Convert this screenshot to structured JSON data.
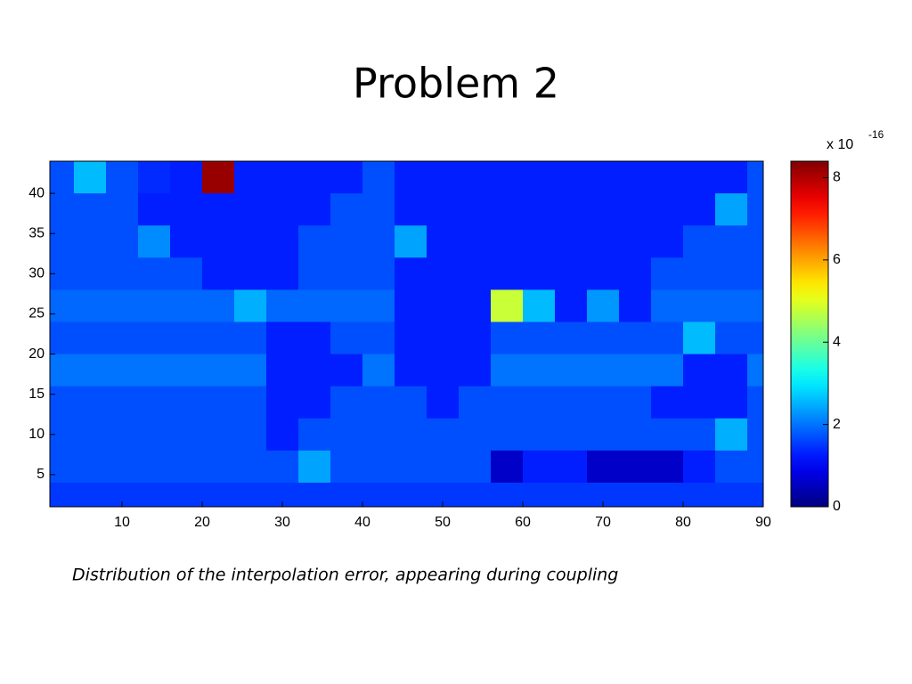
{
  "title": "Problem 2",
  "caption": "Distribution of the interpolation error, appearing during coupling",
  "chart_data": {
    "type": "heatmap",
    "x": [
      2,
      6,
      10,
      14,
      18,
      22,
      26,
      30,
      34,
      38,
      42,
      46,
      50,
      54,
      58,
      62,
      66,
      70,
      74,
      78,
      82,
      86,
      90
    ],
    "y": [
      42,
      38,
      34,
      30,
      26,
      22,
      18,
      14,
      10,
      6,
      2
    ],
    "z": [
      [
        1.7,
        2.6,
        1.7,
        1.4,
        1.3,
        8.2,
        1.3,
        1.3,
        1.3,
        1.3,
        1.7,
        1.3,
        1.3,
        1.3,
        1.3,
        1.3,
        1.3,
        1.3,
        1.3,
        1.3,
        1.3,
        1.3,
        1.7
      ],
      [
        1.7,
        1.7,
        1.7,
        1.3,
        1.3,
        1.3,
        1.3,
        1.3,
        1.3,
        1.7,
        1.7,
        1.3,
        1.3,
        1.3,
        1.3,
        1.3,
        1.3,
        1.3,
        1.3,
        1.3,
        1.3,
        2.4,
        1.7
      ],
      [
        1.7,
        1.7,
        1.7,
        2.2,
        1.3,
        1.3,
        1.3,
        1.3,
        1.7,
        1.7,
        1.7,
        2.4,
        1.3,
        1.3,
        1.3,
        1.3,
        1.3,
        1.3,
        1.3,
        1.3,
        1.7,
        1.7,
        1.7
      ],
      [
        1.7,
        1.7,
        1.7,
        1.7,
        1.7,
        1.3,
        1.3,
        1.3,
        1.7,
        1.7,
        1.7,
        1.3,
        1.3,
        1.3,
        1.3,
        1.3,
        1.3,
        1.3,
        1.3,
        1.7,
        1.7,
        1.7,
        1.7
      ],
      [
        1.9,
        1.9,
        1.9,
        1.9,
        1.9,
        1.9,
        2.5,
        1.9,
        1.9,
        1.9,
        1.9,
        1.3,
        1.3,
        1.3,
        4.8,
        2.6,
        1.3,
        2.3,
        1.3,
        1.9,
        1.9,
        1.9,
        1.9
      ],
      [
        1.7,
        1.7,
        1.7,
        1.7,
        1.7,
        1.7,
        1.7,
        1.3,
        1.3,
        1.7,
        1.7,
        1.3,
        1.3,
        1.3,
        1.7,
        1.7,
        1.7,
        1.7,
        1.7,
        1.7,
        2.6,
        1.7,
        1.7
      ],
      [
        2.0,
        2.0,
        2.0,
        2.0,
        2.0,
        2.0,
        2.0,
        1.3,
        1.3,
        1.3,
        2.0,
        1.3,
        1.3,
        1.3,
        2.0,
        2.0,
        2.0,
        2.0,
        2.0,
        2.0,
        1.3,
        1.3,
        2.0
      ],
      [
        1.7,
        1.7,
        1.7,
        1.7,
        1.7,
        1.7,
        1.7,
        1.3,
        1.3,
        1.7,
        1.7,
        1.7,
        1.3,
        1.7,
        1.7,
        1.7,
        1.7,
        1.7,
        1.7,
        1.3,
        1.3,
        1.3,
        1.7
      ],
      [
        1.7,
        1.7,
        1.7,
        1.7,
        1.7,
        1.7,
        1.7,
        1.3,
        1.7,
        1.7,
        1.7,
        1.7,
        1.7,
        1.7,
        1.7,
        1.7,
        1.7,
        1.7,
        1.7,
        1.7,
        1.7,
        2.5,
        1.7
      ],
      [
        1.7,
        1.7,
        1.7,
        1.7,
        1.7,
        1.7,
        1.7,
        1.7,
        2.4,
        1.7,
        1.7,
        1.7,
        1.7,
        1.7,
        0.6,
        1.3,
        1.3,
        0.6,
        0.6,
        0.6,
        1.3,
        1.7,
        1.7
      ],
      [
        1.5,
        1.5,
        1.5,
        1.5,
        1.5,
        1.5,
        1.5,
        1.5,
        1.5,
        1.5,
        1.5,
        1.5,
        1.5,
        1.5,
        1.5,
        1.5,
        1.5,
        1.5,
        1.5,
        1.5,
        1.5,
        1.5,
        1.5
      ]
    ],
    "xlim": [
      1,
      90
    ],
    "ylim": [
      1,
      44
    ],
    "xticks": [
      10,
      20,
      30,
      40,
      50,
      60,
      70,
      80,
      90
    ],
    "yticks": [
      5,
      10,
      15,
      20,
      25,
      30,
      35,
      40
    ],
    "colormap": "jet",
    "clim": [
      0,
      8.4
    ],
    "cticks": [
      0,
      2,
      4,
      6,
      8
    ],
    "colorbar_multiplier": {
      "base": "x 10",
      "exponent": "-16"
    }
  }
}
